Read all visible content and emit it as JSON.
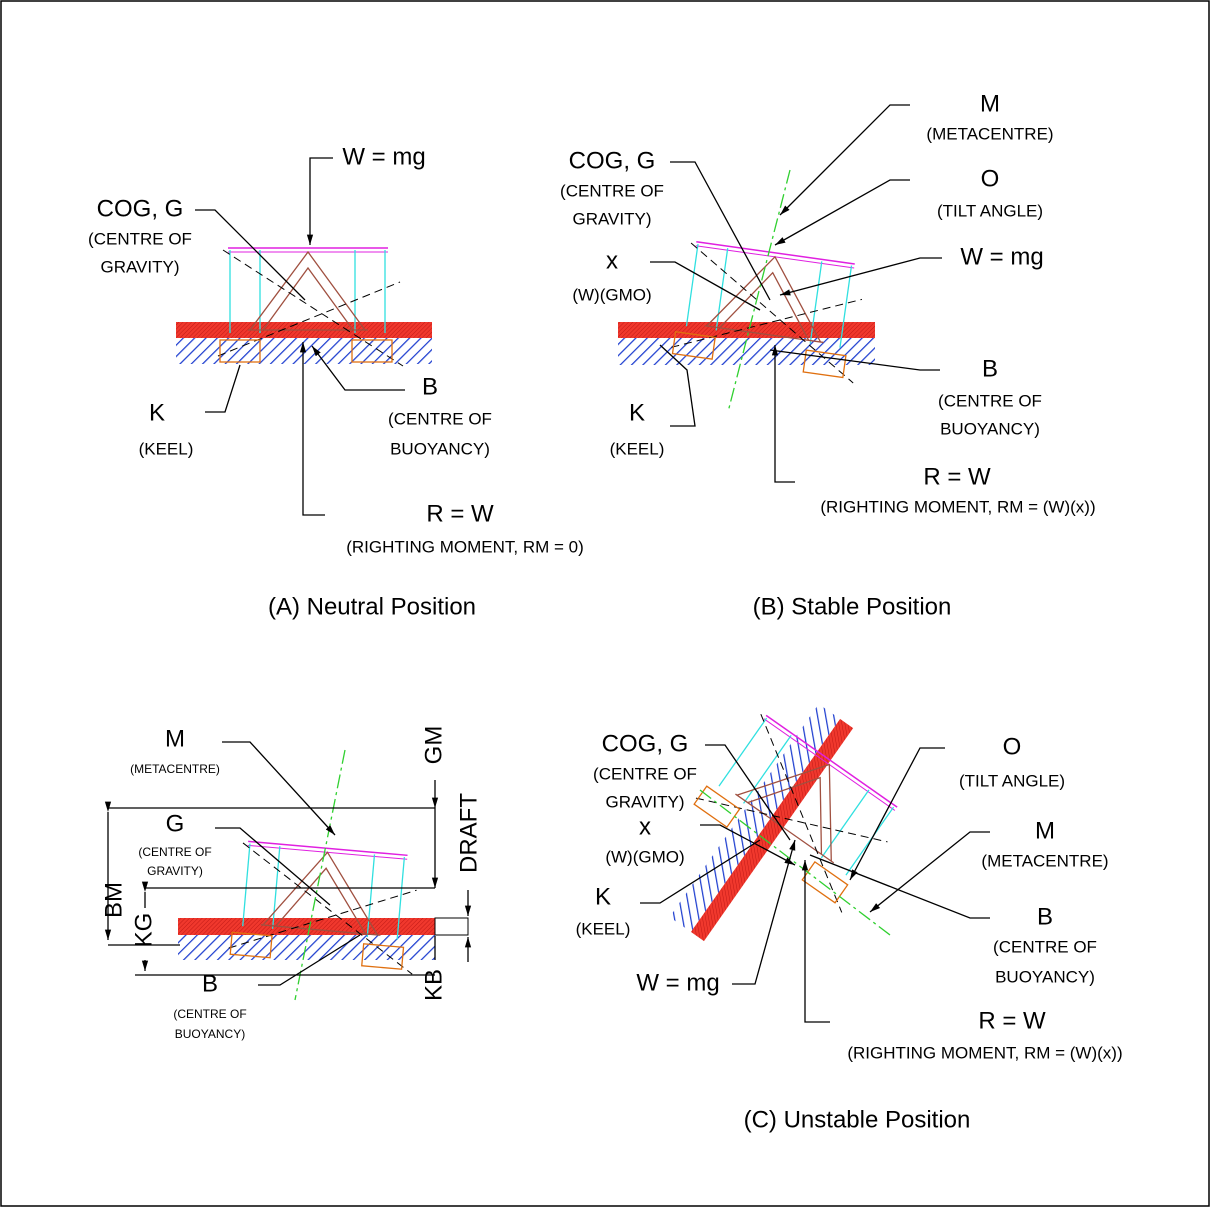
{
  "panels": [
    {
      "caption": "(A) Neutral Position",
      "labels": [
        "W = mg",
        "COG, G",
        "(CENTRE OF",
        "GRAVITY)",
        "K",
        "(KEEL)",
        "B",
        "(CENTRE OF",
        "BUOYANCY)",
        "R = W",
        "(RIGHTING MOMENT, RM = 0)"
      ]
    },
    {
      "caption": "(B) Stable Position",
      "labels": [
        "M",
        "(METACENTRE)",
        "COG, G",
        "(CENTRE OF",
        "GRAVITY)",
        "O",
        "(TILT ANGLE)",
        "x",
        "(W)(GMO)",
        "W = mg",
        "B",
        "(CENTRE OF",
        "BUOYANCY)",
        "K",
        "(KEEL)",
        "R = W",
        "(RIGHTING MOMENT, RM = (W)(x))"
      ]
    },
    {
      "caption": "(C) Unstable Position",
      "labels": [
        "COG, G",
        "(CENTRE OF",
        "GRAVITY)",
        "x",
        "(W)(GMO)",
        "K",
        "(KEEL)",
        "W = mg",
        "O",
        "(TILT ANGLE)",
        "M",
        "(METACENTRE)",
        "B",
        "(CENTRE OF",
        "BUOYANCY)",
        "R = W",
        "(RIGHTING MOMENT, RM = (W)(x))"
      ]
    }
  ],
  "dimensions": {
    "labels": [
      "M",
      "(METACENTRE)",
      "GM",
      "DRAFT",
      "G",
      "(CENTRE OF",
      "GRAVITY)",
      "BM",
      "KG",
      "B",
      "(CENTRE OF",
      "BUOYANCY)",
      "KB"
    ]
  }
}
